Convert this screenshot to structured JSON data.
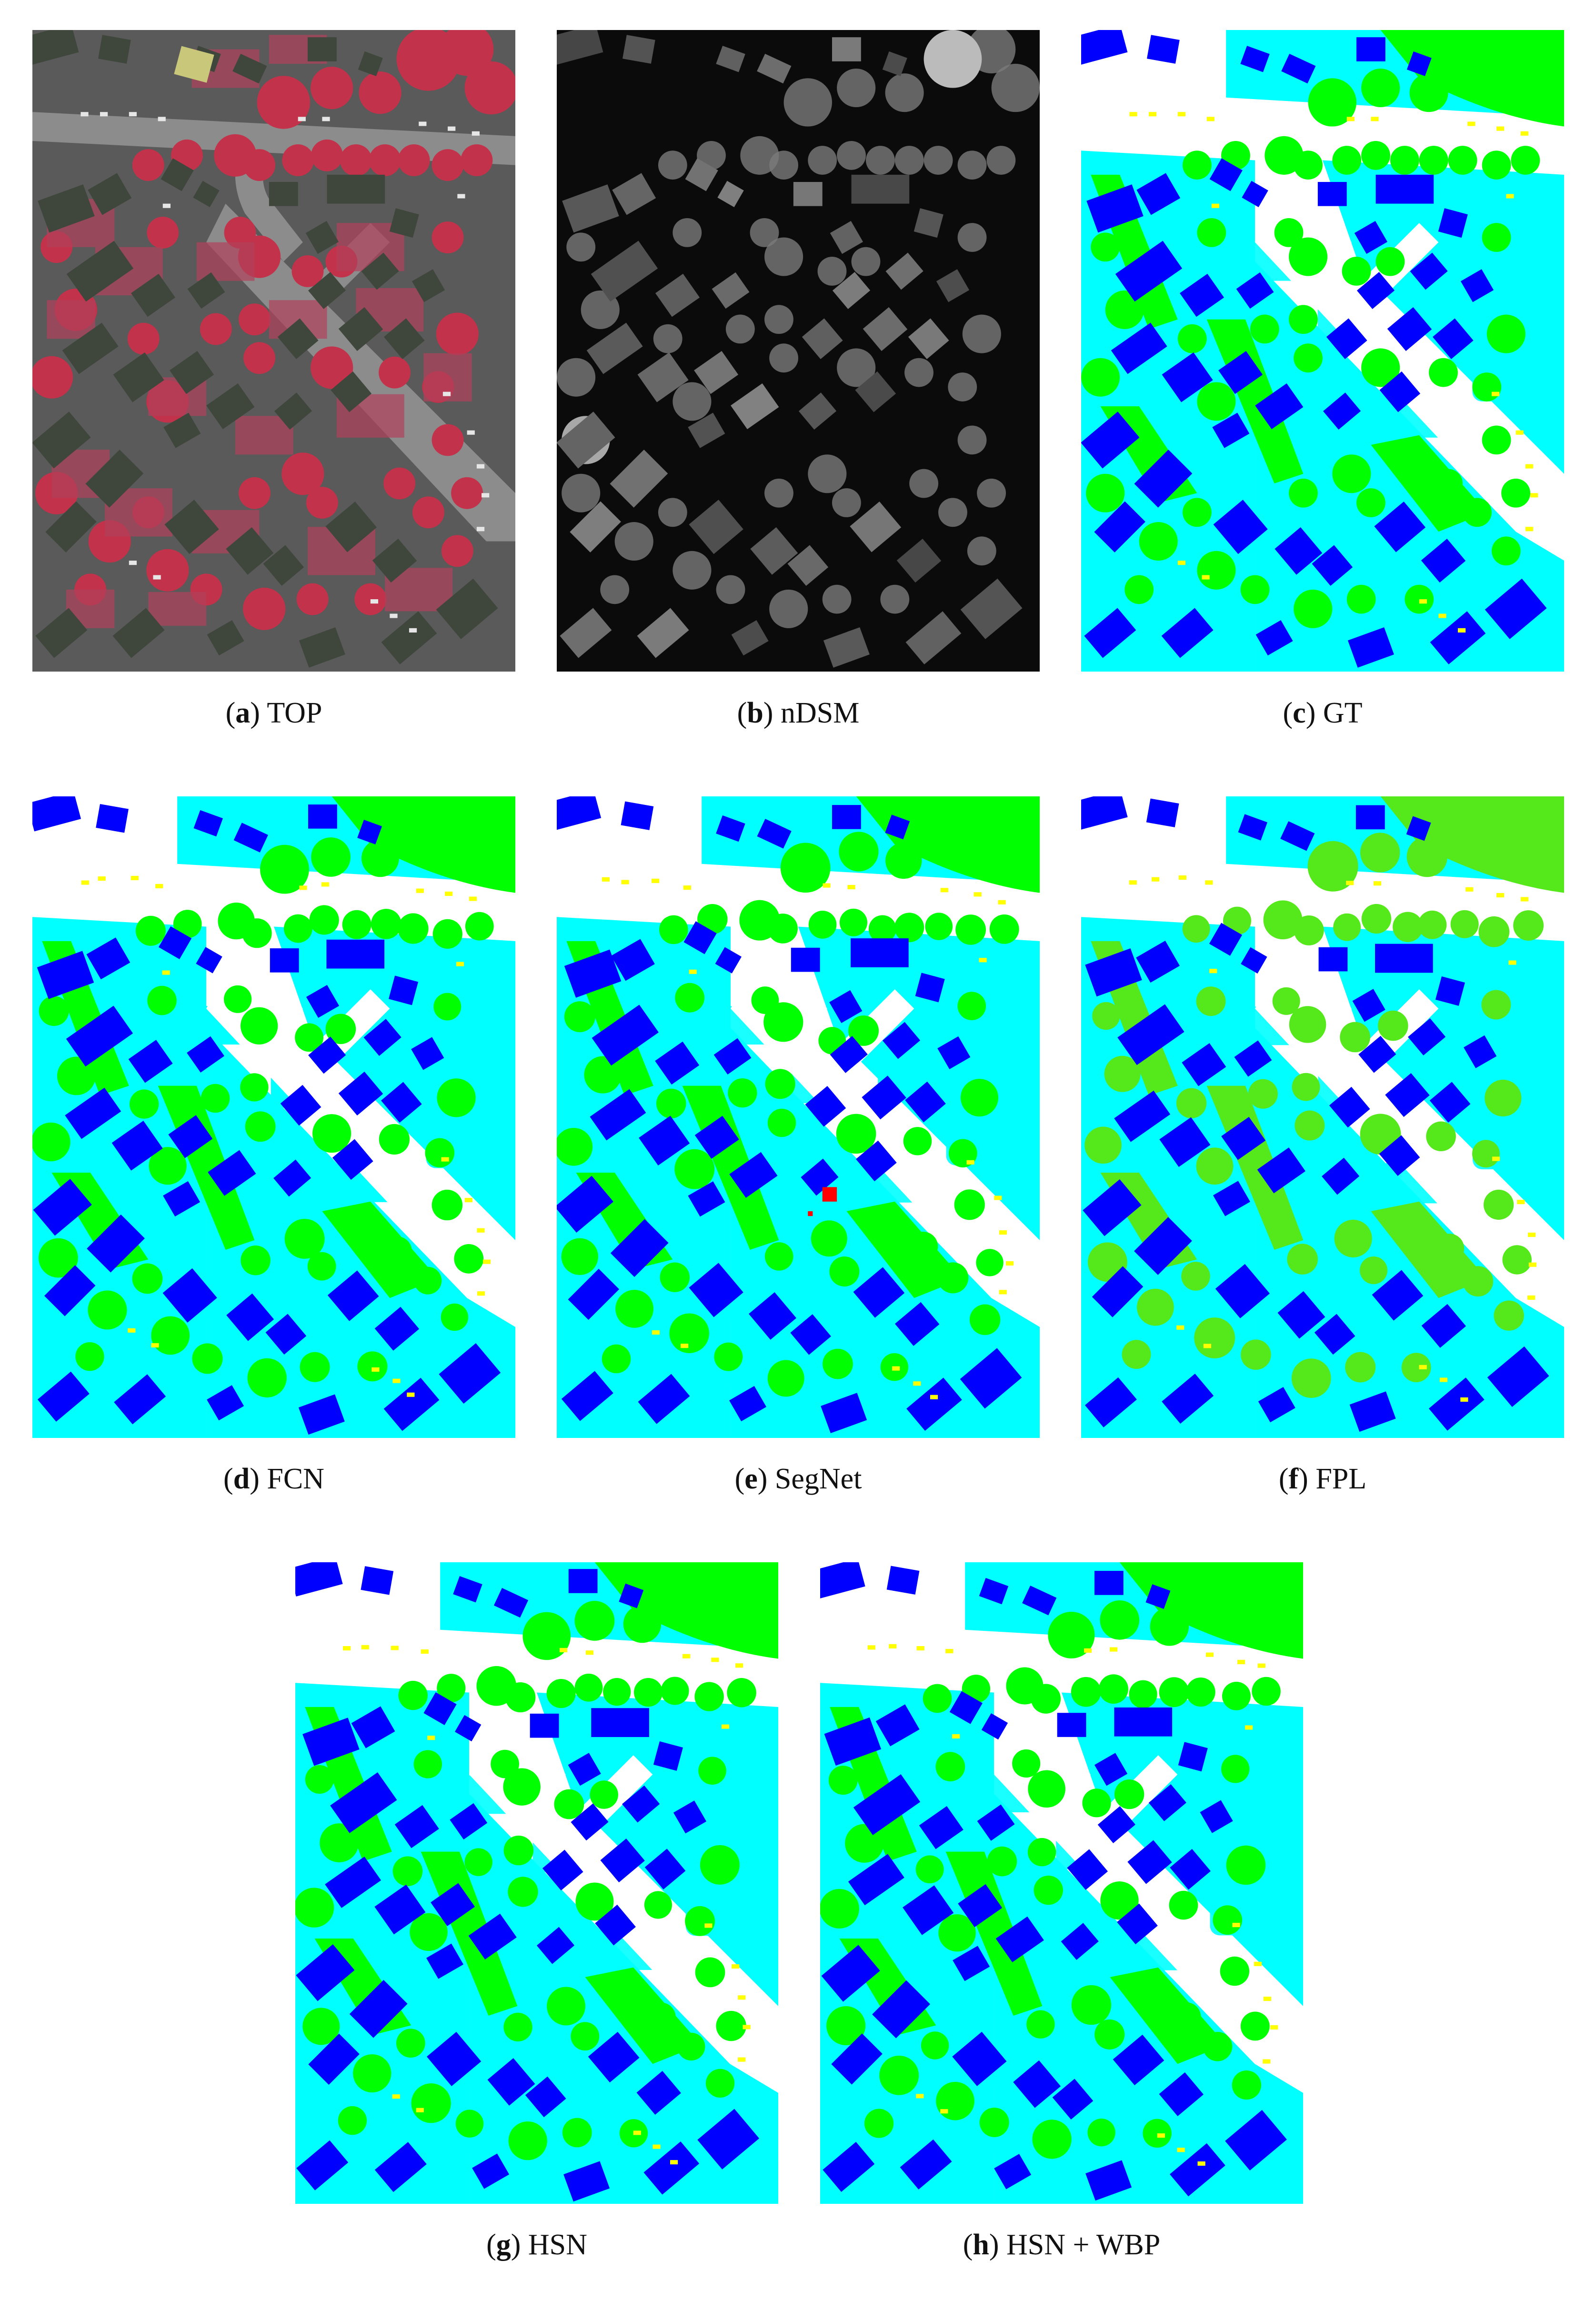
{
  "figure": {
    "panels": [
      {
        "id": "a",
        "letter": "a",
        "label": "TOP",
        "kind": "top"
      },
      {
        "id": "b",
        "letter": "b",
        "label": "nDSM",
        "kind": "ndsm"
      },
      {
        "id": "c",
        "letter": "c",
        "label": "GT",
        "kind": "seg"
      },
      {
        "id": "d",
        "letter": "d",
        "label": "FCN",
        "kind": "seg"
      },
      {
        "id": "e",
        "letter": "e",
        "label": "SegNet",
        "kind": "seg"
      },
      {
        "id": "f",
        "letter": "f",
        "label": "FPL",
        "kind": "seg_fpl"
      },
      {
        "id": "g",
        "letter": "g",
        "label": "HSN",
        "kind": "seg"
      },
      {
        "id": "h",
        "letter": "h",
        "label": "HSN + WBP",
        "kind": "seg"
      }
    ],
    "class_colors": {
      "impervious": "#ffffff",
      "building": "#0000ff",
      "low_vegetation": "#00ffff",
      "tree": "#00ff00",
      "car": "#ffff00",
      "clutter": "#ff0000"
    }
  }
}
